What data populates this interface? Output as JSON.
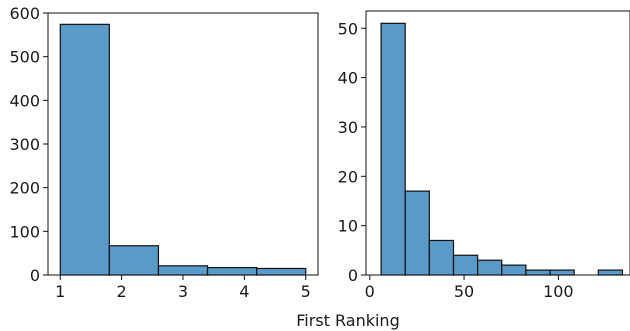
{
  "colors": {
    "bar_fill": "#5a9ac9",
    "bar_edge": "#111111"
  },
  "chart_data": [
    {
      "type": "bar",
      "subtype": "histogram",
      "title": "",
      "xlabel": "",
      "ylabel": "",
      "xlim": [
        0.8,
        5.2
      ],
      "ylim": [
        0,
        600
      ],
      "xticks": [
        1,
        2,
        3,
        4,
        5
      ],
      "yticks": [
        0,
        100,
        200,
        300,
        400,
        500,
        600
      ],
      "bins": [
        {
          "x0": 1.0,
          "x1": 1.8,
          "value": 574
        },
        {
          "x0": 1.8,
          "x1": 2.6,
          "value": 67
        },
        {
          "x0": 2.6,
          "x1": 3.4,
          "value": 21
        },
        {
          "x0": 3.4,
          "x1": 4.2,
          "value": 17
        },
        {
          "x0": 4.2,
          "x1": 5.0,
          "value": 15
        }
      ],
      "grid": false
    },
    {
      "type": "bar",
      "subtype": "histogram",
      "title": "",
      "xlabel": "",
      "ylabel": "",
      "xlim": [
        -2,
        138
      ],
      "ylim": [
        0,
        53.5
      ],
      "xticks": [
        0,
        50,
        100
      ],
      "yticks": [
        0,
        10,
        20,
        30,
        40,
        50
      ],
      "bins": [
        {
          "x0": 6.0,
          "x1": 18.8,
          "value": 51
        },
        {
          "x0": 18.8,
          "x1": 31.6,
          "value": 17
        },
        {
          "x0": 31.6,
          "x1": 44.4,
          "value": 7
        },
        {
          "x0": 44.4,
          "x1": 57.2,
          "value": 4
        },
        {
          "x0": 57.2,
          "x1": 70.0,
          "value": 3
        },
        {
          "x0": 70.0,
          "x1": 82.8,
          "value": 2
        },
        {
          "x0": 82.8,
          "x1": 95.6,
          "value": 1
        },
        {
          "x0": 95.6,
          "x1": 108.4,
          "value": 1
        },
        {
          "x0": 108.4,
          "x1": 121.2,
          "value": 0
        },
        {
          "x0": 121.2,
          "x1": 134.0,
          "value": 1
        }
      ],
      "grid": false
    }
  ],
  "shared_xlabel": "First Ranking"
}
